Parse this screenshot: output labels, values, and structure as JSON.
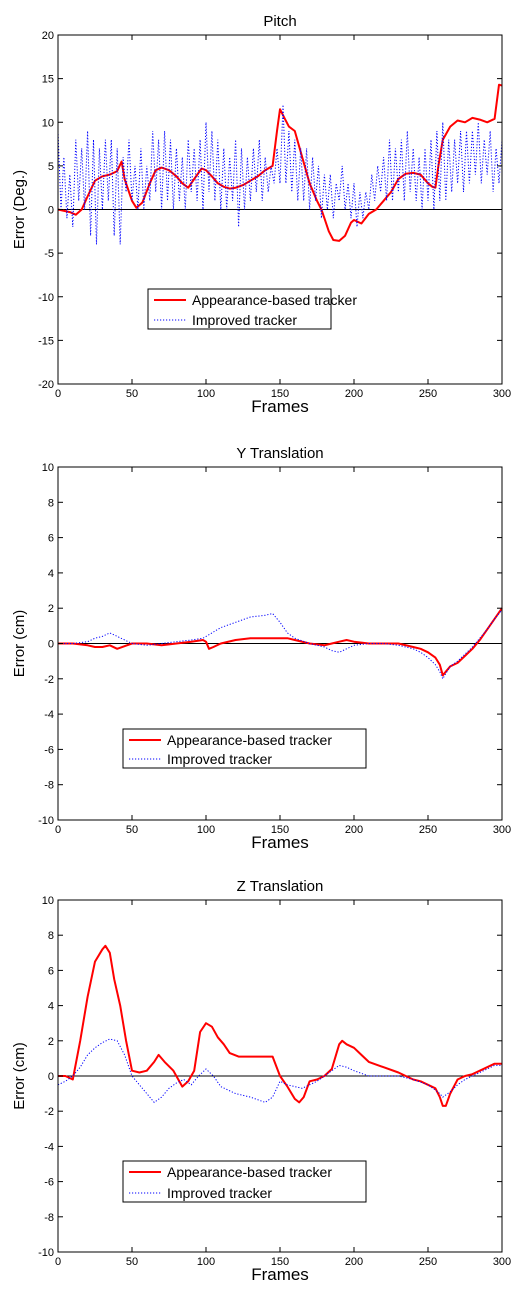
{
  "chart_data": [
    {
      "type": "line",
      "title": "Pitch",
      "xlabel": "Frames",
      "ylabel": "Error  (Deg.)",
      "xlim": [
        0,
        300
      ],
      "ylim": [
        -20,
        20
      ],
      "xticks": [
        0,
        50,
        100,
        150,
        200,
        250,
        300
      ],
      "yticks": [
        -20,
        -15,
        -10,
        -5,
        0,
        5,
        10,
        15,
        20
      ],
      "grid": false,
      "zero_line": true,
      "legend_position": "center-lower",
      "series": [
        {
          "name": "Appearance-based tracker",
          "color": "#ff0000",
          "style": "solid",
          "x": [
            0,
            8,
            12,
            16,
            20,
            25,
            30,
            35,
            40,
            43,
            45,
            48,
            50,
            53,
            57,
            62,
            66,
            70,
            75,
            80,
            84,
            88,
            92,
            97,
            100,
            104,
            108,
            112,
            116,
            120,
            125,
            130,
            135,
            140,
            145,
            148,
            150,
            153,
            156,
            160,
            165,
            170,
            175,
            178,
            180,
            183,
            186,
            190,
            194,
            198,
            200,
            205,
            210,
            215,
            220,
            225,
            230,
            235,
            240,
            245,
            250,
            253,
            255,
            257,
            260,
            265,
            270,
            275,
            280,
            285,
            290,
            295,
            298,
            300
          ],
          "y": [
            0,
            -0.3,
            -0.6,
            0,
            1.5,
            3.3,
            3.8,
            4,
            4.4,
            5.5,
            3.5,
            2,
            1,
            0.2,
            0.8,
            3,
            4.5,
            4.8,
            4.5,
            3.8,
            3,
            2.5,
            3.5,
            4.7,
            4.5,
            3.8,
            3,
            2.6,
            2.4,
            2.5,
            2.8,
            3.3,
            3.8,
            4.5,
            5,
            9,
            11.5,
            10.5,
            9.5,
            9,
            6,
            3,
            1,
            0,
            -1,
            -2.5,
            -3.5,
            -3.6,
            -3,
            -1.5,
            -1.2,
            -1.6,
            -0.5,
            0,
            1,
            2,
            3.5,
            4.1,
            4.2,
            4,
            3,
            2.6,
            2.5,
            5,
            8,
            9.5,
            10.2,
            10,
            10.5,
            10.3,
            10,
            10.4,
            14.3,
            14.2
          ]
        },
        {
          "name": "Improved tracker",
          "color": "#0000ff",
          "style": "dotted",
          "x": [
            0,
            2,
            4,
            6,
            8,
            10,
            12,
            14,
            16,
            18,
            20,
            22,
            24,
            26,
            28,
            30,
            32,
            34,
            36,
            38,
            40,
            42,
            44,
            46,
            48,
            50,
            52,
            54,
            56,
            58,
            60,
            62,
            64,
            66,
            68,
            70,
            72,
            74,
            76,
            78,
            80,
            82,
            84,
            86,
            88,
            90,
            92,
            94,
            96,
            98,
            100,
            102,
            104,
            106,
            108,
            110,
            112,
            114,
            116,
            118,
            120,
            122,
            124,
            126,
            128,
            130,
            132,
            134,
            136,
            138,
            140,
            142,
            144,
            146,
            148,
            150,
            152,
            154,
            156,
            158,
            160,
            162,
            164,
            166,
            168,
            170,
            172,
            174,
            176,
            178,
            180,
            182,
            184,
            186,
            188,
            190,
            192,
            194,
            196,
            198,
            200,
            202,
            204,
            206,
            208,
            210,
            212,
            214,
            216,
            218,
            220,
            222,
            224,
            226,
            228,
            230,
            232,
            234,
            236,
            238,
            240,
            242,
            244,
            246,
            248,
            250,
            252,
            254,
            256,
            258,
            260,
            262,
            264,
            266,
            268,
            270,
            272,
            274,
            276,
            278,
            280,
            282,
            284,
            286,
            288,
            290,
            292,
            294,
            296,
            298,
            300
          ],
          "y": [
            9,
            0,
            6,
            -1,
            4,
            -2,
            8,
            1,
            7,
            0,
            9,
            -3,
            8,
            -4,
            7,
            0,
            8,
            1,
            8,
            -3,
            7,
            -4,
            6,
            2,
            8,
            1,
            5,
            0,
            7,
            0,
            5,
            1,
            9,
            2,
            8,
            0,
            9,
            1,
            8,
            0,
            7,
            1,
            6,
            0,
            8,
            2,
            7,
            1,
            8,
            0,
            10,
            2,
            9,
            1,
            8,
            0,
            7,
            0,
            6,
            1,
            8,
            -2,
            7,
            0,
            6,
            1,
            7,
            2,
            8,
            1,
            6,
            2,
            5,
            3,
            7,
            3,
            12,
            3,
            9,
            2,
            8,
            1,
            7,
            1,
            7,
            0,
            6,
            1,
            5,
            -1,
            4,
            0,
            4,
            -1,
            3,
            1,
            5,
            0,
            3,
            -1,
            3,
            -2,
            2,
            -1,
            2,
            0,
            4,
            1,
            5,
            2,
            6,
            1,
            8,
            1,
            7,
            2,
            8,
            1,
            9,
            2,
            7,
            1,
            6,
            0,
            7,
            1,
            8,
            0,
            9,
            1,
            10,
            1,
            8,
            2,
            8,
            3,
            9,
            2,
            9,
            3,
            9,
            4,
            10,
            3,
            8,
            4,
            9,
            2,
            7,
            3,
            8
          ]
        }
      ]
    },
    {
      "type": "line",
      "title": "Y Translation",
      "xlabel": "Frames",
      "ylabel": "Error (cm)",
      "xlim": [
        0,
        300
      ],
      "ylim": [
        -10,
        10
      ],
      "xticks": [
        0,
        50,
        100,
        150,
        200,
        250,
        300
      ],
      "yticks": [
        -10,
        -8,
        -6,
        -4,
        -2,
        0,
        2,
        4,
        6,
        8,
        10
      ],
      "grid": false,
      "zero_line": true,
      "legend_position": "center-lower",
      "series": [
        {
          "name": "Appearance-based tracker",
          "color": "#ff0000",
          "style": "solid",
          "x": [
            0,
            10,
            20,
            25,
            30,
            35,
            40,
            50,
            60,
            70,
            80,
            90,
            98,
            100,
            102,
            105,
            110,
            120,
            130,
            140,
            145,
            150,
            155,
            160,
            170,
            180,
            185,
            190,
            195,
            200,
            210,
            220,
            230,
            240,
            245,
            250,
            255,
            258,
            260,
            262,
            265,
            270,
            275,
            280,
            285,
            290,
            295,
            300
          ],
          "y": [
            0,
            0,
            -0.1,
            -0.2,
            -0.2,
            -0.1,
            -0.3,
            0,
            0,
            -0.1,
            0,
            0.1,
            0.2,
            0.1,
            -0.3,
            -0.2,
            0,
            0.2,
            0.3,
            0.3,
            0.3,
            0.3,
            0.3,
            0.2,
            0,
            -0.1,
            0,
            0.1,
            0.2,
            0.1,
            0,
            0,
            0,
            -0.2,
            -0.3,
            -0.5,
            -0.8,
            -1.2,
            -1.8,
            -1.6,
            -1.3,
            -1.1,
            -0.7,
            -0.3,
            0.2,
            0.8,
            1.4,
            2
          ]
        },
        {
          "name": "Improved tracker",
          "color": "#0000ff",
          "style": "dotted",
          "x": [
            0,
            10,
            20,
            25,
            30,
            35,
            40,
            50,
            60,
            70,
            80,
            90,
            98,
            102,
            106,
            110,
            120,
            130,
            140,
            145,
            150,
            155,
            160,
            170,
            180,
            185,
            190,
            195,
            200,
            210,
            220,
            230,
            240,
            245,
            250,
            255,
            258,
            260,
            262,
            265,
            270,
            275,
            280,
            285,
            290,
            295,
            300
          ],
          "y": [
            0,
            0,
            0.1,
            0.3,
            0.4,
            0.6,
            0.4,
            0,
            -0.1,
            0,
            0.1,
            0.2,
            0.3,
            0.5,
            0.7,
            0.9,
            1.2,
            1.5,
            1.6,
            1.7,
            1.2,
            0.6,
            0.3,
            0,
            -0.2,
            -0.4,
            -0.5,
            -0.3,
            -0.1,
            0,
            0,
            -0.1,
            -0.3,
            -0.5,
            -0.8,
            -1.2,
            -1.6,
            -2,
            -1.7,
            -1.3,
            -1,
            -0.6,
            -0.2,
            0.3,
            0.8,
            1.4,
            1.9
          ]
        }
      ]
    },
    {
      "type": "line",
      "title": "Z Translation",
      "xlabel": "Frames",
      "ylabel": "Error (cm)",
      "xlim": [
        0,
        300
      ],
      "ylim": [
        -10,
        10
      ],
      "xticks": [
        0,
        50,
        100,
        150,
        200,
        250,
        300
      ],
      "yticks": [
        -10,
        -8,
        -6,
        -4,
        -2,
        0,
        2,
        4,
        6,
        8,
        10
      ],
      "grid": false,
      "zero_line": true,
      "legend_position": "center-lower",
      "series": [
        {
          "name": "Appearance-based tracker",
          "color": "#ff0000",
          "style": "solid",
          "x": [
            0,
            5,
            10,
            15,
            20,
            25,
            30,
            32,
            35,
            38,
            42,
            46,
            50,
            55,
            60,
            65,
            68,
            72,
            78,
            84,
            88,
            92,
            96,
            100,
            104,
            108,
            112,
            116,
            122,
            130,
            140,
            145,
            150,
            155,
            160,
            163,
            166,
            170,
            175,
            180,
            185,
            190,
            192,
            195,
            200,
            205,
            210,
            220,
            230,
            240,
            245,
            250,
            255,
            258,
            260,
            262,
            265,
            270,
            275,
            280,
            285,
            290,
            295,
            300
          ],
          "y": [
            0,
            0,
            -0.2,
            2,
            4.5,
            6.5,
            7.2,
            7.4,
            7,
            5.5,
            4,
            2,
            0.3,
            0.2,
            0.3,
            0.8,
            1.2,
            0.8,
            0.3,
            -0.6,
            -0.3,
            0.3,
            2.5,
            3,
            2.8,
            2.2,
            1.8,
            1.3,
            1.1,
            1.1,
            1.1,
            1.1,
            0,
            -0.6,
            -1.3,
            -1.5,
            -1.2,
            -0.3,
            -0.2,
            0,
            0.4,
            1.8,
            2,
            1.8,
            1.6,
            1.2,
            0.8,
            0.5,
            0.2,
            -0.2,
            -0.3,
            -0.5,
            -0.7,
            -1.2,
            -1.7,
            -1.7,
            -1,
            -0.2,
            0,
            0.1,
            0.3,
            0.5,
            0.7,
            0.7
          ]
        },
        {
          "name": "Improved tracker",
          "color": "#0000ff",
          "style": "dotted",
          "x": [
            0,
            5,
            10,
            15,
            20,
            25,
            30,
            35,
            40,
            45,
            50,
            55,
            60,
            65,
            70,
            75,
            80,
            85,
            90,
            95,
            100,
            105,
            110,
            115,
            120,
            130,
            140,
            145,
            150,
            155,
            160,
            165,
            170,
            175,
            180,
            185,
            190,
            195,
            200,
            210,
            220,
            230,
            240,
            250,
            255,
            258,
            260,
            265,
            270,
            275,
            280,
            285,
            290,
            295,
            300
          ],
          "y": [
            -0.5,
            -0.3,
            0,
            0.5,
            1.2,
            1.6,
            1.9,
            2.1,
            2,
            1.2,
            0,
            -0.5,
            -1,
            -1.5,
            -1.2,
            -0.7,
            -0.4,
            -0.2,
            -0.5,
            0,
            0.4,
            0,
            -0.6,
            -0.8,
            -1,
            -1.2,
            -1.5,
            -1.2,
            -0.3,
            -0.5,
            -0.6,
            -0.7,
            -0.5,
            -0.3,
            0,
            0.3,
            0.6,
            0.5,
            0.3,
            0,
            0,
            0,
            -0.2,
            -0.5,
            -0.8,
            -1,
            -1.2,
            -0.9,
            -0.5,
            -0.2,
            0,
            0.2,
            0.4,
            0.6,
            0.6
          ]
        }
      ]
    }
  ]
}
